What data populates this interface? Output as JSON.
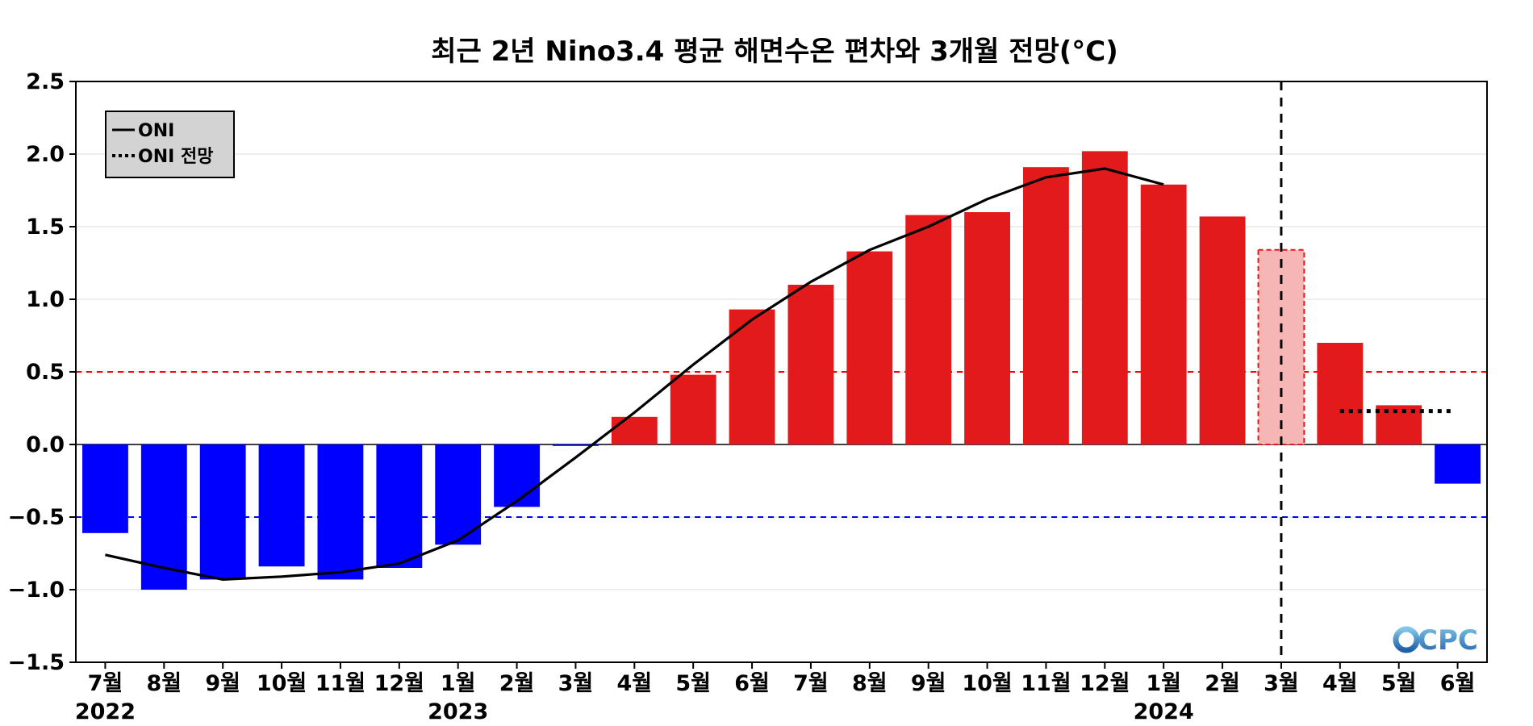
{
  "chart_data": {
    "type": "bar",
    "title": "최근 2년 Nino3.4 평균 해면수온 편차와 3개월 전망(°C)",
    "ylim": [
      -1.5,
      2.5
    ],
    "yticks": [
      -1.5,
      -1.0,
      -0.5,
      0.0,
      0.5,
      1.0,
      1.5,
      2.0,
      2.5
    ],
    "ytick_labels": [
      "−1.5",
      "−1.0",
      "−0.5",
      "0.0",
      "0.5",
      "1.0",
      "1.5",
      "2.0",
      "2.5"
    ],
    "categories": [
      "7월",
      "8월",
      "9월",
      "10월",
      "11월",
      "12월",
      "1월",
      "2월",
      "3월",
      "4월",
      "5월",
      "6월",
      "7월",
      "8월",
      "9월",
      "10월",
      "11월",
      "12월",
      "1월",
      "2월",
      "3월",
      "4월",
      "5월",
      "6월"
    ],
    "year_labels": [
      {
        "category_index": 0,
        "label": "2022"
      },
      {
        "category_index": 6,
        "label": "2023"
      },
      {
        "category_index": 18,
        "label": "2024"
      }
    ],
    "bars": {
      "values": [
        -0.61,
        -1.0,
        -0.93,
        -0.84,
        -0.93,
        -0.85,
        -0.69,
        -0.43,
        -0.01,
        0.19,
        0.48,
        0.93,
        1.1,
        1.33,
        1.58,
        1.6,
        1.91,
        2.02,
        1.79,
        1.57,
        1.34,
        0.7,
        0.27,
        -0.27
      ],
      "estimated_index": 20,
      "positive_color": "#e31a1c",
      "negative_color": "#0000ff",
      "estimated_fill": "#f7b6b6",
      "estimated_stroke": "#e31a1c"
    },
    "series": [
      {
        "name": "ONI",
        "style": "solid",
        "color": "#000000",
        "points": [
          {
            "i": 0,
            "y": -0.76
          },
          {
            "i": 1,
            "y": -0.85
          },
          {
            "i": 2,
            "y": -0.93
          },
          {
            "i": 3,
            "y": -0.91
          },
          {
            "i": 4,
            "y": -0.88
          },
          {
            "i": 5,
            "y": -0.82
          },
          {
            "i": 6,
            "y": -0.66
          },
          {
            "i": 7,
            "y": -0.39
          },
          {
            "i": 8,
            "y": -0.09
          },
          {
            "i": 9,
            "y": 0.22
          },
          {
            "i": 10,
            "y": 0.55
          },
          {
            "i": 11,
            "y": 0.86
          },
          {
            "i": 12,
            "y": 1.12
          },
          {
            "i": 13,
            "y": 1.34
          },
          {
            "i": 14,
            "y": 1.5
          },
          {
            "i": 15,
            "y": 1.69
          },
          {
            "i": 16,
            "y": 1.84
          },
          {
            "i": 17,
            "y": 1.9
          },
          {
            "i": 18,
            "y": 1.79
          }
        ]
      },
      {
        "name": "ONI 전망",
        "style": "dotted",
        "color": "#000000",
        "points": [
          {
            "i": 21,
            "y": 0.23
          },
          {
            "i": 22.9,
            "y": 0.23
          }
        ]
      }
    ],
    "reference_lines": [
      {
        "y": 0.5,
        "color": "#ff0000",
        "style": "dashed"
      },
      {
        "y": -0.5,
        "color": "#0000ff",
        "style": "dashed"
      },
      {
        "y": 0.0,
        "color": "#000000",
        "style": "solid"
      }
    ],
    "vertical_marker": {
      "category_index": 20,
      "color": "#000000",
      "style": "dashed"
    },
    "grid": true,
    "legend": {
      "position": "top-left",
      "items": [
        {
          "label": "ONI",
          "style": "solid"
        },
        {
          "label": "ONI 전망",
          "style": "dotted"
        }
      ]
    },
    "logo_text": "CPC"
  }
}
